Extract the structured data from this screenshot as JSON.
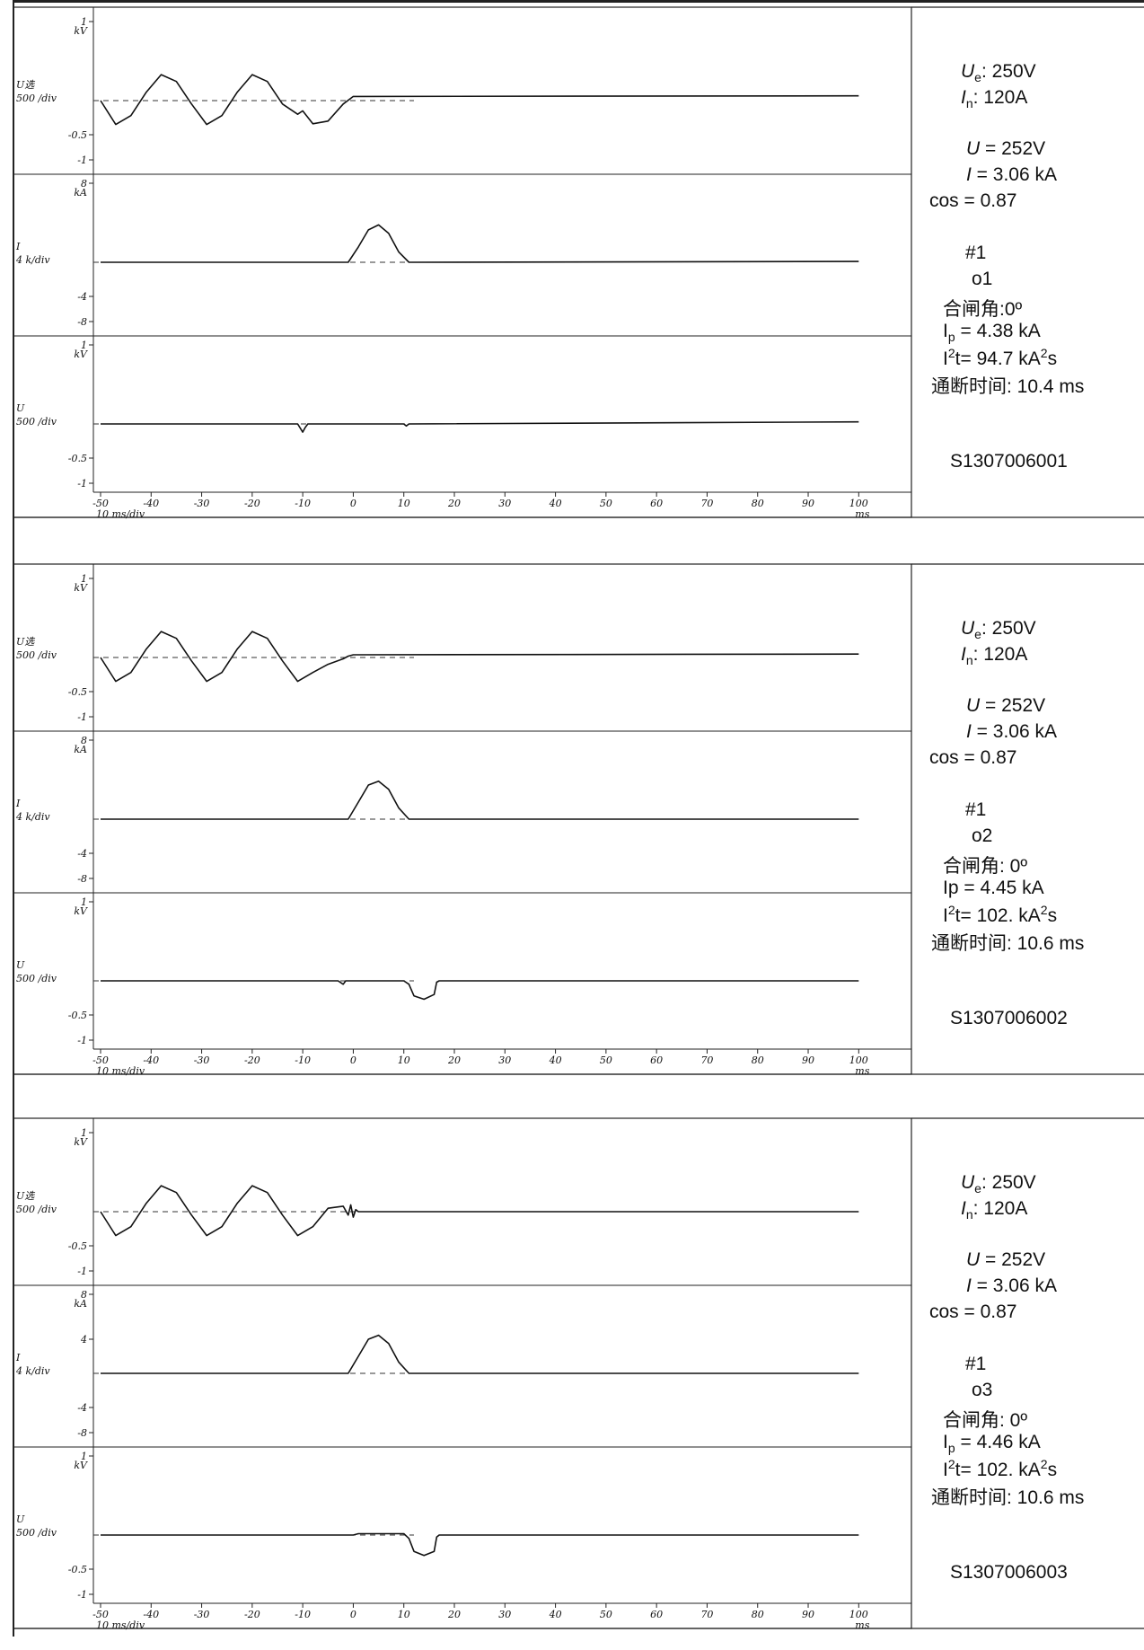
{
  "records": [
    {
      "id": "S1307006001",
      "op": "o1",
      "sample": "#1",
      "ue_label": "U",
      "ue_sub": "e",
      "ue_value": ": 250V",
      "in_label": "I",
      "in_sub": "n",
      "in_value": ": 120A",
      "u_label": "U",
      "u_value": "= 252V",
      "i_label": "I",
      "i_value": "=  3.06 kA",
      "cos_label": "cos",
      "cos_value": "= 0.87",
      "angle": "合闸角:0º",
      "ip_label": "I",
      "ip_sub": "p",
      "ip_value": "= 4.38 kA",
      "i2t_label": "I",
      "i2t_sup": "2",
      "i2t_mid": "t= 94.7 kA",
      "i2t_unit_sup": "2",
      "i2t_end": "s",
      "break_time": "通断时间:  10.4 ms"
    },
    {
      "id": "S1307006002",
      "op": "o2",
      "sample": "#1",
      "ue_label": "U",
      "ue_sub": "e",
      "ue_value": ": 250V",
      "in_label": "I",
      "in_sub": "n",
      "in_value": ": 120A",
      "u_label": "U",
      "u_value": "= 252V",
      "i_label": "I",
      "i_value": "=  3.06 kA",
      "cos_label": "cos",
      "cos_value": "= 0.87",
      "angle": "合闸角: 0º",
      "ip_label": "Ip",
      "ip_sub": "",
      "ip_value": "= 4.45 kA",
      "i2t_label": "I",
      "i2t_sup": "2",
      "i2t_mid": "t= 102. kA",
      "i2t_unit_sup": "2",
      "i2t_end": "s",
      "break_time": "通断时间:  10.6 ms"
    },
    {
      "id": "S1307006003",
      "op": "o3",
      "sample": "#1",
      "ue_label": "U",
      "ue_sub": "e",
      "ue_value": ": 250V",
      "in_label": "I",
      "in_sub": "n",
      "in_value": ": 120A",
      "u_label": "U",
      "u_value": "= 252V",
      "i_label": "I",
      "i_value": "=  3.06 kA",
      "cos_label": "cos",
      "cos_value": "= 0.87",
      "angle": "合闸角: 0º",
      "ip_label": "I",
      "ip_sub": "p",
      "ip_value": "= 4.46 kA",
      "i2t_label": "I",
      "i2t_sup": "2",
      "i2t_mid": "t= 102. kA",
      "i2t_unit_sup": "2",
      "i2t_end": "s",
      "break_time": "通断时间:  10.6 ms"
    }
  ],
  "chart_data": [
    {
      "type": "line",
      "x_ticks": [
        "-50",
        "-40",
        "-30",
        "-20",
        "-10",
        "0",
        "10",
        "20",
        "30",
        "40",
        "50",
        "60",
        "70",
        "80",
        "90",
        "100"
      ],
      "x_range": [
        -50,
        100
      ],
      "x_unit": "ms",
      "x_div_label": "10 ms/div",
      "channels": [
        {
          "name": "U选",
          "scale": "500 /div",
          "unit": "kV",
          "ticks": [
            "1",
            "-0.5",
            "-1"
          ],
          "ylim": [
            -1,
            1
          ],
          "x": [
            -50,
            -47,
            -44,
            -41,
            -38,
            -35,
            -32,
            -29,
            -26,
            -23,
            -20,
            -17,
            -14,
            -11,
            -10,
            -8,
            -5,
            -2,
            0,
            100
          ],
          "y": [
            0,
            -0.35,
            -0.22,
            0.12,
            0.38,
            0.28,
            -0.05,
            -0.35,
            -0.22,
            0.12,
            0.38,
            0.28,
            -0.05,
            -0.2,
            -0.15,
            -0.34,
            -0.3,
            -0.05,
            0.06,
            0.07
          ]
        },
        {
          "name": "I",
          "scale": "4 k/div",
          "unit": "kA",
          "ticks": [
            "8",
            "-4",
            "-8"
          ],
          "ylim": [
            -8,
            8
          ],
          "x": [
            -50,
            -1,
            1,
            3,
            5,
            7,
            9,
            11,
            100
          ],
          "y": [
            0,
            0,
            1.8,
            3.8,
            4.38,
            3.4,
            1.2,
            0,
            0.1
          ]
        },
        {
          "name": "U",
          "scale": "500 /div",
          "unit": "kV",
          "ticks": [
            "1",
            "-0.5",
            "-1"
          ],
          "ylim": [
            -1,
            1
          ],
          "x": [
            -50,
            -11,
            -10,
            -9.5,
            -9,
            10,
            10.5,
            11,
            100
          ],
          "y": [
            0,
            0,
            -0.12,
            -0.05,
            0,
            0,
            -0.03,
            0,
            0.03
          ]
        }
      ]
    },
    {
      "type": "line",
      "x_ticks": [
        "-50",
        "-40",
        "-30",
        "-20",
        "-10",
        "0",
        "10",
        "20",
        "30",
        "40",
        "50",
        "60",
        "70",
        "80",
        "90",
        "100"
      ],
      "x_range": [
        -50,
        100
      ],
      "x_unit": "ms",
      "x_div_label": "10 ms/div",
      "channels": [
        {
          "name": "U选",
          "scale": "500 /div",
          "unit": "kV",
          "ticks": [
            "1",
            "-0.5",
            "-1"
          ],
          "ylim": [
            -1,
            1
          ],
          "x": [
            -50,
            -47,
            -44,
            -41,
            -38,
            -35,
            -32,
            -29,
            -26,
            -23,
            -20,
            -17,
            -14,
            -11,
            -8,
            -5,
            -2,
            -1,
            0,
            100
          ],
          "y": [
            0,
            -0.35,
            -0.22,
            0.12,
            0.38,
            0.28,
            -0.05,
            -0.35,
            -0.22,
            0.12,
            0.38,
            0.28,
            -0.05,
            -0.35,
            -0.22,
            -0.1,
            -0.02,
            0.02,
            0.04,
            0.05
          ]
        },
        {
          "name": "I",
          "scale": "4 k/div",
          "unit": "kA",
          "ticks": [
            "8",
            "-4",
            "-8"
          ],
          "ylim": [
            -8,
            8
          ],
          "x": [
            -50,
            -1,
            1,
            3,
            5,
            7,
            9,
            11,
            100
          ],
          "y": [
            0,
            0,
            2,
            4,
            4.45,
            3.5,
            1.3,
            0,
            0
          ]
        },
        {
          "name": "U",
          "scale": "500 /div",
          "unit": "kV",
          "ticks": [
            "1",
            "-0.5",
            "-1"
          ],
          "ylim": [
            -1,
            1
          ],
          "x": [
            -50,
            -3,
            -2,
            -1.5,
            0,
            10,
            11,
            12,
            14,
            16,
            16.5,
            17,
            100
          ],
          "y": [
            0,
            0,
            -0.05,
            0,
            0,
            0,
            -0.05,
            -0.22,
            -0.27,
            -0.2,
            -0.02,
            0,
            0
          ]
        }
      ]
    },
    {
      "type": "line",
      "x_ticks": [
        "-50",
        "-40",
        "-30",
        "-20",
        "-10",
        "0",
        "10",
        "20",
        "30",
        "40",
        "50",
        "60",
        "70",
        "80",
        "90",
        "100"
      ],
      "x_range": [
        -50,
        100
      ],
      "x_unit": "ms",
      "x_div_label": "10 ms/div",
      "channels": [
        {
          "name": "U选",
          "scale": "500 /div",
          "unit": "kV",
          "ticks": [
            "1",
            "-0.5",
            "-1"
          ],
          "ylim": [
            -1,
            1
          ],
          "x": [
            -50,
            -47,
            -44,
            -41,
            -38,
            -35,
            -32,
            -29,
            -26,
            -23,
            -20,
            -17,
            -14,
            -11,
            -8,
            -5,
            -2,
            -1,
            -0.5,
            0,
            0.5,
            1,
            100
          ],
          "y": [
            0,
            -0.35,
            -0.22,
            0.12,
            0.38,
            0.28,
            -0.05,
            -0.35,
            -0.22,
            0.12,
            0.38,
            0.28,
            -0.05,
            -0.35,
            -0.22,
            0.05,
            0.08,
            -0.05,
            0.1,
            -0.08,
            0.03,
            0,
            0
          ]
        },
        {
          "name": "I",
          "scale": "4 k/div",
          "unit": "kA",
          "ticks": [
            "8",
            "4",
            "-4",
            "-8"
          ],
          "ylim": [
            -8,
            8
          ],
          "x": [
            -50,
            -1,
            1,
            3,
            5,
            7,
            9,
            11,
            100
          ],
          "y": [
            0,
            0,
            2,
            4,
            4.46,
            3.5,
            1.3,
            0,
            0
          ]
        },
        {
          "name": "U",
          "scale": "500 /div",
          "unit": "kV",
          "ticks": [
            "1",
            "-0.5",
            "-1"
          ],
          "ylim": [
            -1,
            1
          ],
          "x": [
            -50,
            0,
            1,
            10,
            11,
            12,
            14,
            16,
            16.5,
            17,
            100
          ],
          "y": [
            0,
            0,
            0.02,
            0.02,
            -0.05,
            -0.24,
            -0.3,
            -0.24,
            -0.03,
            0,
            0
          ]
        }
      ]
    }
  ]
}
